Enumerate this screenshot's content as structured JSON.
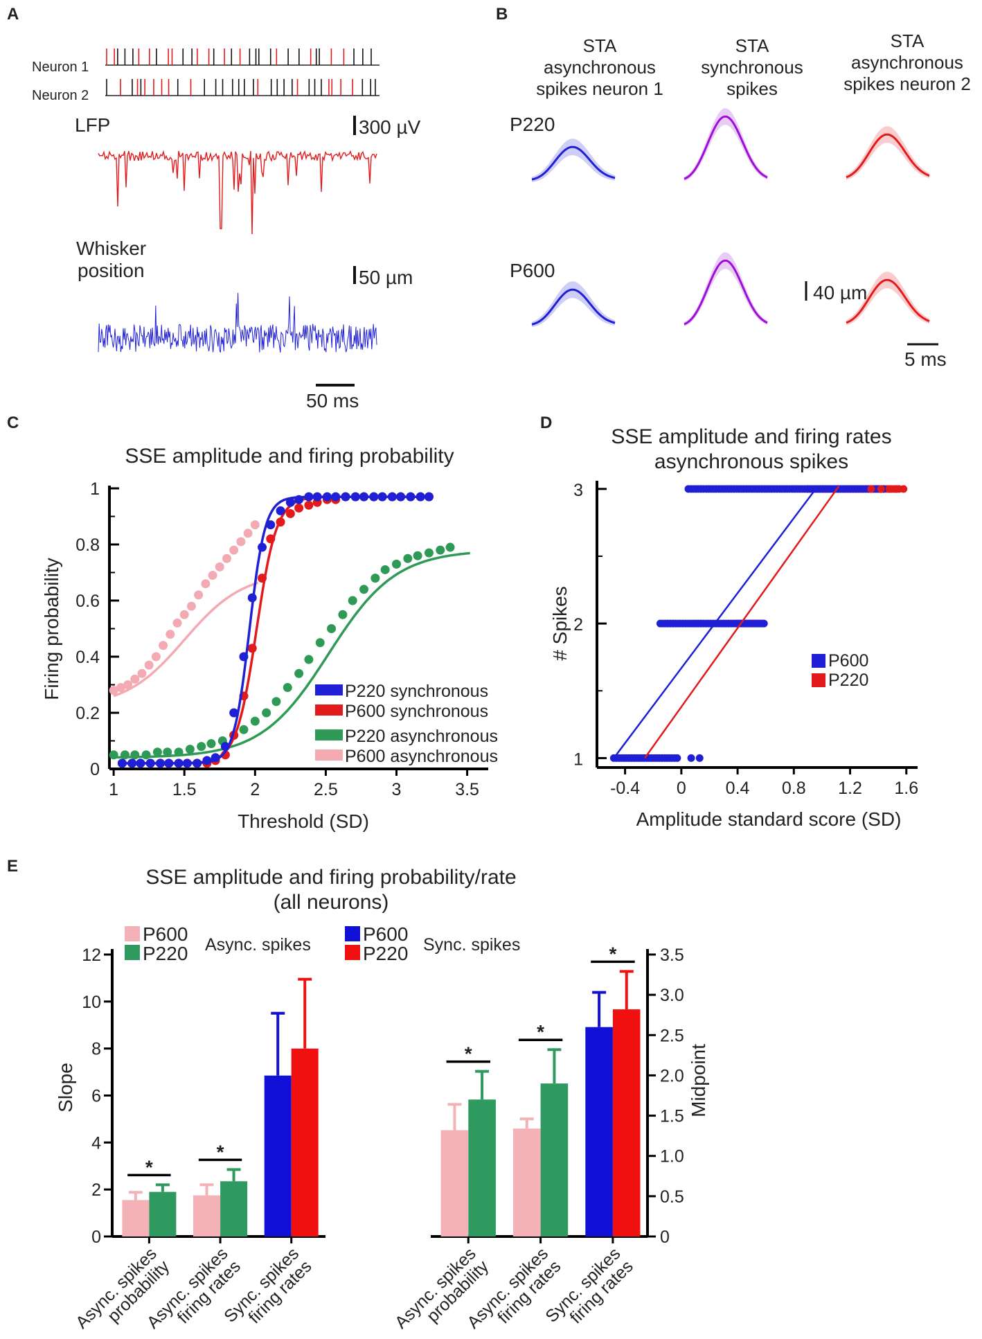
{
  "panels": {
    "A": {
      "letter": "A",
      "neuron1": "Neuron 1",
      "neuron2": "Neuron 2",
      "lfp": "LFP",
      "lfp_scale": "300 µV",
      "whisker1": "Whisker",
      "whisker2": "position",
      "whisker_scale": "50 µm",
      "time_scale": "50 ms",
      "colors": {
        "spikes_sync": "#e31a1c",
        "spikes_async": "#111111",
        "lfp": "#e31a1c",
        "whisker": "#1f1fd6"
      }
    },
    "B": {
      "letter": "B",
      "col_titles": [
        [
          "STA",
          "asynchronous",
          "spikes neuron 1"
        ],
        [
          "STA",
          "synchronous",
          "spikes"
        ],
        [
          "STA",
          "asynchronous",
          "spikes neuron 2"
        ]
      ],
      "rows": [
        "P220",
        "P600"
      ],
      "scale_v": "40 µm",
      "scale_h": "5 ms",
      "colors": [
        "#1f1fd6",
        "#9b10d6",
        "#e31a1c"
      ]
    },
    "E": {
      "letter": "E",
      "title1": "SSE amplitude and firing probability/rate",
      "title2": "(all neurons)",
      "legend_left": {
        "a": "P600",
        "b": "P220",
        "caption": "Async. spikes"
      },
      "legend_right": {
        "a": "P600",
        "b": "P220",
        "caption": "Sync. spikes"
      }
    }
  },
  "chart_data": [
    {
      "id": "C",
      "letter": "C",
      "type": "scatter",
      "title": "SSE amplitude and firing probability",
      "xlabel": "Threshold (SD)",
      "ylabel": "Firing probability",
      "xlim": [
        0.97,
        3.6
      ],
      "ylim": [
        0,
        1
      ],
      "xticks": [
        1,
        1.5,
        2,
        2.5,
        3,
        3.5
      ],
      "xtick_labels": [
        "1",
        "1.5",
        "2",
        "2.5",
        "3",
        "3.5"
      ],
      "yticks": [
        0,
        0.2,
        0.4,
        0.6,
        0.8,
        1
      ],
      "ytick_labels": [
        "0",
        "0.2",
        "0.4",
        "0.6",
        "0.8",
        "1"
      ],
      "series": [
        {
          "name": "P220 synchronous",
          "color": "#1f1fd6",
          "x": [
            1.06,
            1.13,
            1.19,
            1.26,
            1.33,
            1.39,
            1.46,
            1.52,
            1.59,
            1.66,
            1.72,
            1.79,
            1.85,
            1.92,
            1.98,
            2.05,
            2.11,
            2.18,
            2.25,
            2.31,
            2.38,
            2.44,
            2.51,
            2.57,
            2.64,
            2.71,
            2.77,
            2.84,
            2.9,
            2.97,
            3.03,
            3.1,
            3.17,
            3.23
          ],
          "y": [
            0.02,
            0.02,
            0.02,
            0.02,
            0.02,
            0.02,
            0.02,
            0.02,
            0.02,
            0.03,
            0.04,
            0.08,
            0.2,
            0.4,
            0.61,
            0.79,
            0.87,
            0.92,
            0.95,
            0.96,
            0.97,
            0.97,
            0.97,
            0.97,
            0.97,
            0.97,
            0.97,
            0.97,
            0.97,
            0.97,
            0.97,
            0.97,
            0.97,
            0.97
          ],
          "fit": {
            "L": 0.97,
            "k": 18,
            "x0": 1.96,
            "base": 0.02
          }
        },
        {
          "name": "P600 synchronous",
          "color": "#e31a1c",
          "x": [
            1.06,
            1.13,
            1.19,
            1.26,
            1.33,
            1.39,
            1.46,
            1.52,
            1.59,
            1.66,
            1.72,
            1.79,
            1.85,
            1.92,
            1.98,
            2.05,
            2.11,
            2.18,
            2.25,
            2.31,
            2.38,
            2.44,
            2.51,
            2.57,
            2.64,
            2.71,
            2.77,
            2.84,
            2.9,
            2.97,
            3.03,
            3.1,
            3.17,
            3.23
          ],
          "y": [
            0.02,
            0.02,
            0.02,
            0.02,
            0.02,
            0.02,
            0.02,
            0.02,
            0.02,
            0.02,
            0.03,
            0.05,
            0.12,
            0.26,
            0.43,
            0.68,
            0.82,
            0.88,
            0.91,
            0.93,
            0.94,
            0.95,
            0.96,
            0.96,
            0.97,
            0.97,
            0.97,
            0.97,
            0.97,
            0.97,
            0.97,
            0.97,
            0.97,
            0.97
          ],
          "fit": {
            "L": 0.97,
            "k": 14,
            "x0": 2.01,
            "base": 0.02
          }
        },
        {
          "name": "P220 asynchronous",
          "color": "#2e9a55",
          "x": [
            1.0,
            1.08,
            1.15,
            1.23,
            1.31,
            1.38,
            1.46,
            1.54,
            1.62,
            1.69,
            1.77,
            1.85,
            1.92,
            2.0,
            2.08,
            2.15,
            2.23,
            2.31,
            2.38,
            2.46,
            2.54,
            2.62,
            2.69,
            2.77,
            2.85,
            2.92,
            3.0,
            3.08,
            3.15,
            3.23,
            3.31,
            3.38
          ],
          "y": [
            0.05,
            0.05,
            0.05,
            0.05,
            0.06,
            0.06,
            0.06,
            0.07,
            0.08,
            0.09,
            0.1,
            0.12,
            0.14,
            0.17,
            0.2,
            0.24,
            0.29,
            0.34,
            0.39,
            0.45,
            0.5,
            0.55,
            0.6,
            0.64,
            0.68,
            0.71,
            0.73,
            0.75,
            0.76,
            0.77,
            0.78,
            0.79
          ],
          "fit": {
            "L": 0.78,
            "k": 4.2,
            "x0": 2.52,
            "base": 0.04
          }
        },
        {
          "name": "P600 asynchronous",
          "color": "#f4aab2",
          "x": [
            1.0,
            1.05,
            1.1,
            1.15,
            1.2,
            1.25,
            1.3,
            1.35,
            1.4,
            1.45,
            1.5,
            1.55,
            1.6,
            1.65,
            1.7,
            1.75,
            1.8,
            1.85,
            1.9,
            1.95,
            2.0
          ],
          "y": [
            0.28,
            0.29,
            0.3,
            0.32,
            0.34,
            0.37,
            0.4,
            0.44,
            0.48,
            0.52,
            0.55,
            0.58,
            0.62,
            0.66,
            0.69,
            0.72,
            0.75,
            0.78,
            0.81,
            0.84,
            0.87
          ],
          "fit": {
            "L": 0.7,
            "k": 4.8,
            "x0": 1.5,
            "base": 0.22
          }
        }
      ]
    },
    {
      "id": "D",
      "letter": "D",
      "type": "scatter",
      "title": "SSE amplitude and firing rates",
      "subtitle": "asynchronous spikes",
      "xlabel": "Amplitude standard score (SD)",
      "ylabel": "# Spikes",
      "xlim": [
        -0.6,
        1.68
      ],
      "ylim": [
        0.93,
        3.03
      ],
      "xticks": [
        -0.4,
        0,
        0.4,
        0.8,
        1.2,
        1.6
      ],
      "xtick_labels": [
        "-0.4",
        "0",
        "0.4",
        "0.8",
        "1.2",
        "1.6"
      ],
      "yticks": [
        1,
        2,
        3
      ],
      "ytick_labels": [
        "1",
        "2",
        "3"
      ],
      "series": [
        {
          "name": "P600",
          "color": "#1f1fd6",
          "ranges": [
            {
              "y": 1,
              "x": [
                -0.48,
                -0.02
              ]
            },
            {
              "y": 2,
              "x": [
                -0.15,
                0.6
              ]
            },
            {
              "y": 3,
              "x": [
                0.05,
                1.45
              ]
            }
          ],
          "outliers": [
            {
              "x": 0.07,
              "y": 1
            },
            {
              "x": 0.13,
              "y": 1
            }
          ],
          "line": {
            "x": [
              -0.48,
              0.97
            ],
            "y": [
              1,
              3.02
            ]
          }
        },
        {
          "name": "P220",
          "color": "#e31a1c",
          "ranges": [
            {
              "y": 2,
              "x": [
                0.4,
                0.58
              ]
            },
            {
              "y": 3,
              "x": [
                0.9,
                1.56
              ]
            }
          ],
          "outliers": [],
          "line": {
            "x": [
              -0.26,
              1.12
            ],
            "y": [
              1,
              3.02
            ]
          }
        }
      ]
    },
    {
      "id": "E-left",
      "type": "bar",
      "ylabel": "Slope",
      "ylim": [
        0,
        12
      ],
      "yticks": [
        0,
        2,
        4,
        6,
        8,
        10,
        12
      ],
      "ytick_labels": [
        "0",
        "2",
        "4",
        "6",
        "8",
        "10",
        "12"
      ],
      "categories": [
        "Async. spikes probability",
        "Async. spikes firing rates",
        "Sync. spikes firing rates"
      ],
      "category_lines": [
        [
          "Async. spikes",
          "probability"
        ],
        [
          "Async. spikes",
          "firing rates"
        ],
        [
          "Sync. spikes",
          "firing rates"
        ]
      ],
      "groups": [
        {
          "bars": [
            {
              "name": "P600",
              "value": 1.55,
              "err": 0.33,
              "color": "#f4b2b8"
            },
            {
              "name": "P220",
              "value": 1.9,
              "err": 0.3,
              "color": "#2e9a60"
            }
          ],
          "significant": true,
          "star": "*"
        },
        {
          "bars": [
            {
              "name": "P600",
              "value": 1.75,
              "err": 0.45,
              "color": "#f4b2b8"
            },
            {
              "name": "P220",
              "value": 2.35,
              "err": 0.5,
              "color": "#2e9a60"
            }
          ],
          "significant": true,
          "star": "*"
        },
        {
          "bars": [
            {
              "name": "P600",
              "value": 6.85,
              "err": 2.65,
              "color": "#1010d6"
            },
            {
              "name": "P220",
              "value": 8.0,
              "err": 2.95,
              "color": "#f01010"
            }
          ],
          "significant": false,
          "star": ""
        }
      ]
    },
    {
      "id": "E-right",
      "type": "bar",
      "ylabel": "Midpoint",
      "ylim": [
        0,
        3.5
      ],
      "yticks": [
        0,
        0.5,
        1.0,
        1.5,
        2.0,
        2.5,
        3.0,
        3.5
      ],
      "ytick_labels": [
        "0",
        "0.5",
        "1.0",
        "1.5",
        "2.0",
        "2.5",
        "3.0",
        "3.5"
      ],
      "categories": [
        "Async. spikes probability",
        "Async. spikes firing rates",
        "Sync. spikes firing rates"
      ],
      "category_lines": [
        [
          "Async. spikes",
          "probability"
        ],
        [
          "Async. spikes",
          "firing rates"
        ],
        [
          "Sync. spikes",
          "firing rates"
        ]
      ],
      "groups": [
        {
          "bars": [
            {
              "name": "P600",
              "value": 1.32,
              "err": 0.32,
              "color": "#f4b2b8"
            },
            {
              "name": "P220",
              "value": 1.7,
              "err": 0.35,
              "color": "#2e9a60"
            }
          ],
          "significant": true,
          "star": "*"
        },
        {
          "bars": [
            {
              "name": "P600",
              "value": 1.34,
              "err": 0.12,
              "color": "#f4b2b8"
            },
            {
              "name": "P220",
              "value": 1.9,
              "err": 0.42,
              "color": "#2e9a60"
            }
          ],
          "significant": true,
          "star": "*"
        },
        {
          "bars": [
            {
              "name": "P600",
              "value": 2.6,
              "err": 0.43,
              "color": "#1010d6"
            },
            {
              "name": "P220",
              "value": 2.82,
              "err": 0.47,
              "color": "#f01010"
            }
          ],
          "significant": true,
          "star": "*"
        }
      ]
    }
  ]
}
